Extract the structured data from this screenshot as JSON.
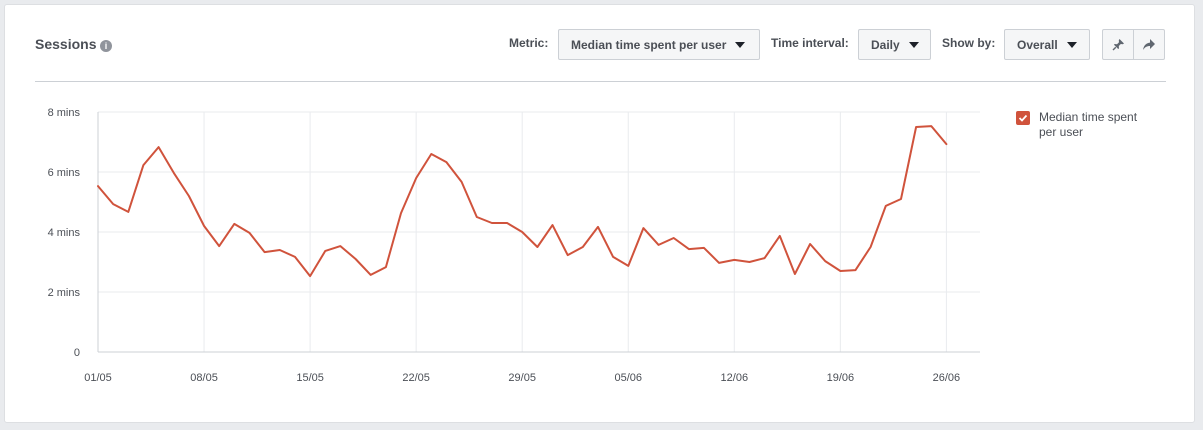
{
  "header": {
    "title": "Sessions",
    "metric_label": "Metric:",
    "metric_value": "Median time spent per user",
    "interval_label": "Time interval:",
    "interval_value": "Daily",
    "showby_label": "Show by:",
    "showby_value": "Overall",
    "pin_icon": "pin-icon",
    "share_icon": "share-icon",
    "info_icon": "info-icon"
  },
  "colors": {
    "series": "#d0533c",
    "grid": "#e9ebee",
    "axis": "#ccd0d5"
  },
  "chart_data": {
    "type": "line",
    "xlabel": "",
    "ylabel": "",
    "ylim": [
      0,
      8
    ],
    "y_unit": "mins",
    "yticks": [
      0,
      2,
      4,
      6,
      8
    ],
    "ytick_labels": [
      "0",
      "2 mins",
      "4 mins",
      "6 mins",
      "8 mins"
    ],
    "x_tick_labels": [
      "01/05",
      "08/05",
      "15/05",
      "22/05",
      "29/05",
      "05/06",
      "12/06",
      "19/06",
      "26/06"
    ],
    "x_start": "01/05",
    "x_end": "27/06",
    "grid": true,
    "legend_position": "right",
    "series": [
      {
        "name": "Median time spent per user",
        "values": [
          5.53,
          4.93,
          4.67,
          6.23,
          6.83,
          5.97,
          5.2,
          4.2,
          3.53,
          4.27,
          3.97,
          3.33,
          3.4,
          3.17,
          2.53,
          3.37,
          3.53,
          3.1,
          2.57,
          2.83,
          4.63,
          5.8,
          6.6,
          6.33,
          5.67,
          4.5,
          4.3,
          4.3,
          4.0,
          3.5,
          4.23,
          3.23,
          3.5,
          4.17,
          3.17,
          2.87,
          4.13,
          3.57,
          3.8,
          3.43,
          3.47,
          2.97,
          3.07,
          3.0,
          3.13,
          3.87,
          2.6,
          3.6,
          3.03,
          2.7,
          2.73,
          3.5,
          4.87,
          5.1,
          7.5,
          7.53,
          6.93
        ]
      }
    ]
  }
}
